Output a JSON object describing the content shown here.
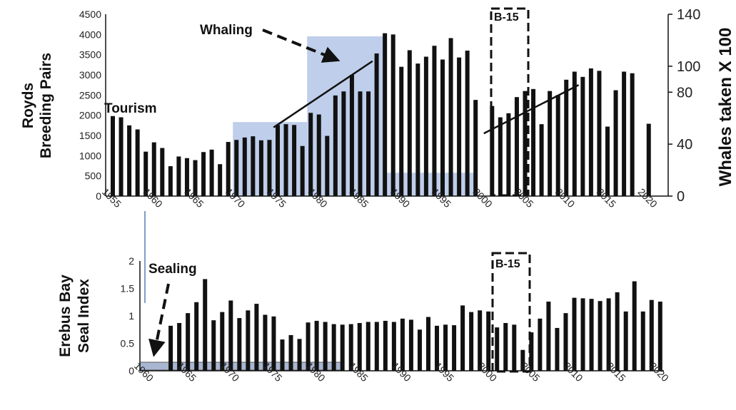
{
  "chart_data": [
    {
      "type": "bar",
      "ylabel_line1": "Royds",
      "ylabel_line2": "Breeding Pairs",
      "y2label": "Whales taken X 100",
      "ylim": [
        0,
        4500
      ],
      "y2lim": [
        0,
        140
      ],
      "yticks": [
        "0",
        "500",
        "1000",
        "1500",
        "2000",
        "2500",
        "3000",
        "3500",
        "4000",
        "4500"
      ],
      "y2ticks": [
        "0",
        "40",
        "80",
        "100",
        "140"
      ],
      "xticks": [
        "1955",
        "1960",
        "1965",
        "1970",
        "1975",
        "1980",
        "1985",
        "1990",
        "1995",
        "2000",
        "2005",
        "2010",
        "2015",
        "2020"
      ],
      "x": [
        1955,
        1956,
        1957,
        1958,
        1959,
        1960,
        1961,
        1962,
        1963,
        1964,
        1965,
        1966,
        1967,
        1968,
        1969,
        1970,
        1971,
        1972,
        1973,
        1974,
        1975,
        1976,
        1977,
        1978,
        1979,
        1980,
        1981,
        1982,
        1983,
        1984,
        1985,
        1986,
        1987,
        1988,
        1989,
        1990,
        1991,
        1992,
        1993,
        1994,
        1995,
        1996,
        1997,
        1998,
        1999,
        2000,
        2001,
        2002,
        2003,
        2004,
        2005,
        2006,
        2007,
        2008,
        2009,
        2010,
        2011,
        2012,
        2013,
        2014,
        2015,
        2016,
        2017,
        2018,
        2019,
        2020
      ],
      "values": [
        1980,
        1950,
        1750,
        1650,
        1100,
        1330,
        1190,
        740,
        980,
        940,
        890,
        1090,
        1150,
        790,
        1340,
        1390,
        1450,
        1480,
        1380,
        1390,
        1760,
        1780,
        1760,
        1240,
        2060,
        2020,
        1490,
        2490,
        2590,
        3000,
        2590,
        2590,
        3530,
        4030,
        4000,
        3200,
        3610,
        3280,
        3450,
        3720,
        3380,
        3910,
        3430,
        3600,
        2380,
        null,
        2230,
        1950,
        2050,
        2450,
        2600,
        2650,
        1780,
        2600,
        2500,
        2880,
        3080,
        2950,
        3160,
        3100,
        1720,
        2620,
        3080,
        3040,
        null,
        1790
      ],
      "annotations": [
        "Tourism",
        "Whaling",
        "B-15"
      ],
      "whaling_blocks": [
        {
          "x0": 1970,
          "x1": 1979,
          "y2": 57
        },
        {
          "x0": 1979,
          "x1": 1988.5,
          "y2": 123
        },
        {
          "x0": 1988.5,
          "x1": 1999.5,
          "y2": 18
        }
      ],
      "trend_lines": [
        {
          "x0": 1974.5,
          "y0": 1700,
          "x1": 1986.5,
          "y1": 3340
        },
        {
          "x0": 2000,
          "y0": 1550,
          "x1": 2011.5,
          "y1": 2750
        }
      ],
      "b15_period": [
        2000.5,
        2004.5
      ],
      "colors": {
        "bars": "#111111",
        "whaling_fill": "#a9bde3",
        "sealing_fill": "#9aa9c9"
      }
    },
    {
      "type": "bar",
      "ylabel_line1": "Erebus Bay",
      "ylabel_line2": "Seal Index",
      "ylim": [
        0,
        2
      ],
      "yticks": [
        "0",
        "0.5",
        "1",
        "1.5",
        "2"
      ],
      "xticks": [
        "1960",
        "1965",
        "1970",
        "1975",
        "1980",
        "1985",
        "1990",
        "1995",
        "2000",
        "2005",
        "2010",
        "2015",
        "2020"
      ],
      "x": [
        1963,
        1964,
        1965,
        1966,
        1967,
        1968,
        1969,
        1970,
        1971,
        1972,
        1973,
        1974,
        1975,
        1976,
        1977,
        1978,
        1979,
        1980,
        1981,
        1982,
        1983,
        1984,
        1985,
        1986,
        1987,
        1988,
        1989,
        1990,
        1991,
        1992,
        1993,
        1994,
        1995,
        1996,
        1997,
        1998,
        1999,
        2000,
        2001,
        2002,
        2003,
        2004,
        2005,
        2006,
        2007,
        2008,
        2009,
        2010,
        2011,
        2012,
        2013,
        2014,
        2015,
        2016,
        2017,
        2018,
        2019,
        2020
      ],
      "values": [
        0.82,
        0.87,
        1.05,
        1.25,
        1.67,
        0.92,
        1.07,
        1.28,
        0.96,
        1.1,
        1.22,
        1.02,
        0.99,
        0.57,
        0.65,
        0.58,
        0.88,
        0.91,
        0.89,
        0.85,
        0.84,
        0.85,
        0.87,
        0.89,
        0.89,
        0.91,
        0.89,
        0.95,
        0.93,
        0.75,
        0.98,
        0.82,
        0.84,
        0.83,
        1.19,
        1.07,
        1.1,
        1.08,
        0.79,
        0.87,
        0.84,
        0.38,
        0.7,
        0.95,
        1.26,
        0.78,
        1.05,
        1.33,
        1.32,
        1.31,
        1.27,
        1.32,
        1.43,
        1.08,
        1.63,
        1.08,
        1.29,
        1.26
      ],
      "annotations": [
        "Sealing",
        "B-15"
      ],
      "sealing_block": {
        "x0": 1960,
        "x1": 1983
      },
      "b15_period": [
        2000.5,
        2005
      ]
    }
  ]
}
